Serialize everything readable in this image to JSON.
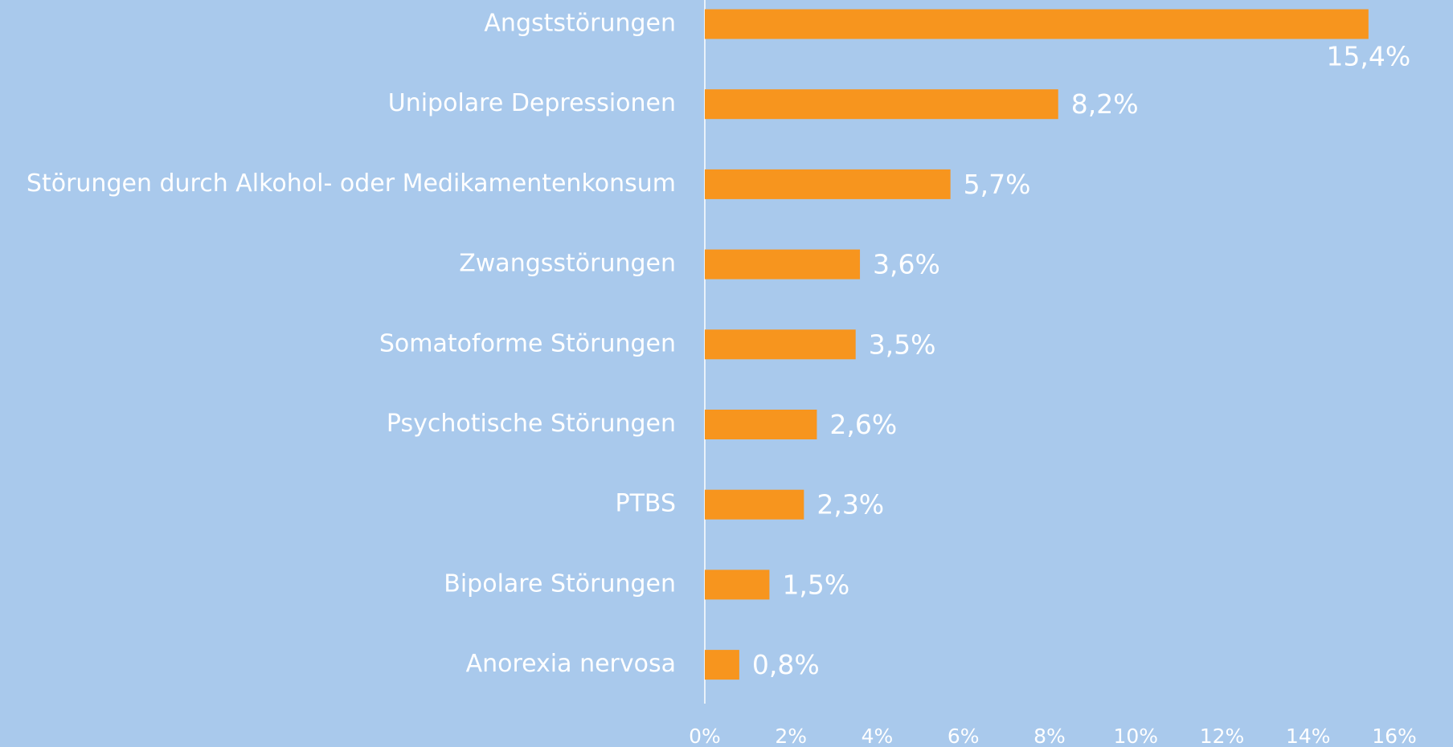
{
  "chart_data": {
    "type": "barh",
    "categories": [
      "Angststörungen",
      "Unipolare Depressionen",
      "Störungen durch Alkohol- oder Medikamentenkonsum",
      "Zwangsstörungen",
      "Somatoforme Störungen",
      "Psychotische Störungen",
      "PTBS",
      "Bipolare Störungen",
      "Anorexia nervosa"
    ],
    "values": [
      15.4,
      8.2,
      5.7,
      3.6,
      3.5,
      2.6,
      2.3,
      1.5,
      0.8
    ],
    "value_labels": [
      "15,4%",
      "8,2%",
      "5,7%",
      "3,6%",
      "3,5%",
      "2,6%",
      "2,3%",
      "1,5%",
      "0,8%"
    ],
    "color": "#f7951e",
    "xlim": [
      0,
      16
    ],
    "xticks": [
      {
        "value": 0,
        "label": "0%"
      },
      {
        "value": 2,
        "label": "2%"
      },
      {
        "value": 4,
        "label": "4%"
      },
      {
        "value": 6,
        "label": "6%"
      },
      {
        "value": 8,
        "label": "8%"
      },
      {
        "value": 10,
        "label": "10%"
      },
      {
        "value": 12,
        "label": "12%"
      },
      {
        "value": 14,
        "label": "14%"
      },
      {
        "value": 16,
        "label": "16%"
      }
    ]
  }
}
